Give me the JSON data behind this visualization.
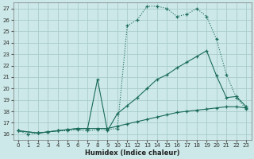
{
  "xlabel": "Humidex (Indice chaleur)",
  "bg_color": "#cce8e8",
  "grid_color": "#aacccc",
  "line_color": "#1a6b5a",
  "xlim": [
    -0.5,
    23.5
  ],
  "ylim": [
    15.5,
    27.5
  ],
  "xticks": [
    0,
    1,
    2,
    3,
    4,
    5,
    6,
    7,
    8,
    9,
    10,
    11,
    12,
    13,
    14,
    15,
    16,
    17,
    18,
    19,
    20,
    21,
    22,
    23
  ],
  "yticks": [
    16,
    17,
    18,
    19,
    20,
    21,
    22,
    23,
    24,
    25,
    26,
    27
  ],
  "line1_x": [
    0,
    1,
    2,
    3,
    4,
    5,
    6,
    7,
    8,
    9,
    10,
    11,
    12,
    13,
    14,
    15,
    16,
    17,
    18,
    19,
    20,
    21,
    22,
    23
  ],
  "line1_y": [
    16.3,
    16.0,
    16.1,
    16.2,
    16.3,
    16.3,
    16.4,
    16.3,
    16.4,
    16.4,
    16.5,
    25.5,
    26.0,
    27.2,
    27.2,
    27.0,
    26.3,
    26.5,
    27.0,
    26.3,
    24.3,
    21.2,
    19.2,
    18.2
  ],
  "line2_x": [
    0,
    2,
    3,
    4,
    5,
    6,
    7,
    8,
    9,
    10,
    11,
    12,
    13,
    14,
    15,
    16,
    17,
    18,
    19,
    20,
    21,
    22,
    23
  ],
  "line2_y": [
    16.3,
    16.1,
    16.2,
    16.3,
    16.4,
    16.5,
    16.5,
    20.8,
    16.3,
    17.8,
    18.5,
    19.2,
    20.0,
    20.8,
    21.2,
    21.8,
    22.3,
    22.8,
    23.3,
    21.1,
    19.2,
    19.3,
    18.4
  ],
  "line3_x": [
    0,
    2,
    3,
    4,
    5,
    6,
    7,
    8,
    9,
    10,
    11,
    12,
    13,
    14,
    15,
    16,
    17,
    18,
    19,
    20,
    21,
    22,
    23
  ],
  "line3_y": [
    16.3,
    16.1,
    16.2,
    16.3,
    16.4,
    16.5,
    16.5,
    16.5,
    16.5,
    16.7,
    16.9,
    17.1,
    17.3,
    17.5,
    17.7,
    17.9,
    18.0,
    18.1,
    18.2,
    18.3,
    18.4,
    18.4,
    18.3
  ]
}
